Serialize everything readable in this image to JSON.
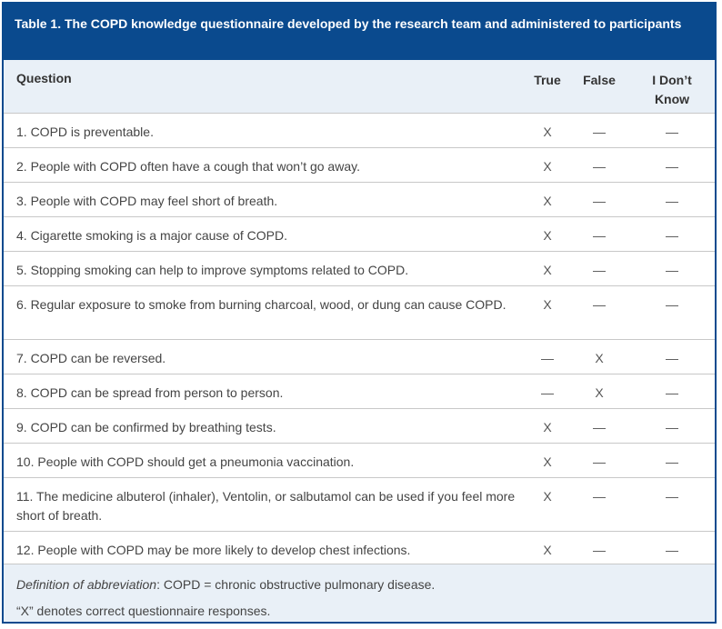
{
  "table": {
    "caption": "Table 1. The COPD knowledge questionnaire developed by the research team and administered to participants",
    "headers": {
      "question": "Question",
      "true": "True",
      "false": "False",
      "idk_line1": "I Don’t",
      "idk_line2": "Know"
    },
    "rows": [
      {
        "question": "1. COPD is preventable.",
        "true": "X",
        "false": "—",
        "idk": "—"
      },
      {
        "question": "2. People with COPD often have a cough that won’t go away.",
        "true": "X",
        "false": "—",
        "idk": "—"
      },
      {
        "question": "3. People with COPD may feel short of breath.",
        "true": "X",
        "false": "—",
        "idk": "—"
      },
      {
        "question": "4. Cigarette smoking is a major cause of COPD.",
        "true": "X",
        "false": "—",
        "idk": "—"
      },
      {
        "question": "5. Stopping smoking can help to improve symptoms related to COPD.",
        "true": "X",
        "false": "—",
        "idk": "—"
      },
      {
        "question": "6. Regular exposure to smoke from burning charcoal, wood, or dung can cause COPD.",
        "true": "X",
        "false": "—",
        "idk": "—"
      },
      {
        "question": "7. COPD can be reversed.",
        "true": "—",
        "false": "X",
        "idk": "—"
      },
      {
        "question": "8. COPD can be spread from person to person.",
        "true": "—",
        "false": "X",
        "idk": "—"
      },
      {
        "question": "9. COPD can be confirmed by breathing tests.",
        "true": "X",
        "false": "—",
        "idk": "—"
      },
      {
        "question": "10. People with COPD should get a pneumonia vaccination.",
        "true": "X",
        "false": "—",
        "idk": "—"
      },
      {
        "question": "11. The medicine albuterol (inhaler), Ventolin, or salbutamol can be used if you feel more short of breath.",
        "true": "X",
        "false": "—",
        "idk": "—"
      },
      {
        "question": "12. People with COPD may be more likely to develop chest infections.",
        "true": "X",
        "false": "—",
        "idk": "—"
      }
    ],
    "footnotes": {
      "abbrev_label": "Definition of abbreviation",
      "abbrev_text": ": COPD = chronic obstructive pulmonary disease.",
      "note": "“X” denotes correct questionnaire responses."
    }
  }
}
